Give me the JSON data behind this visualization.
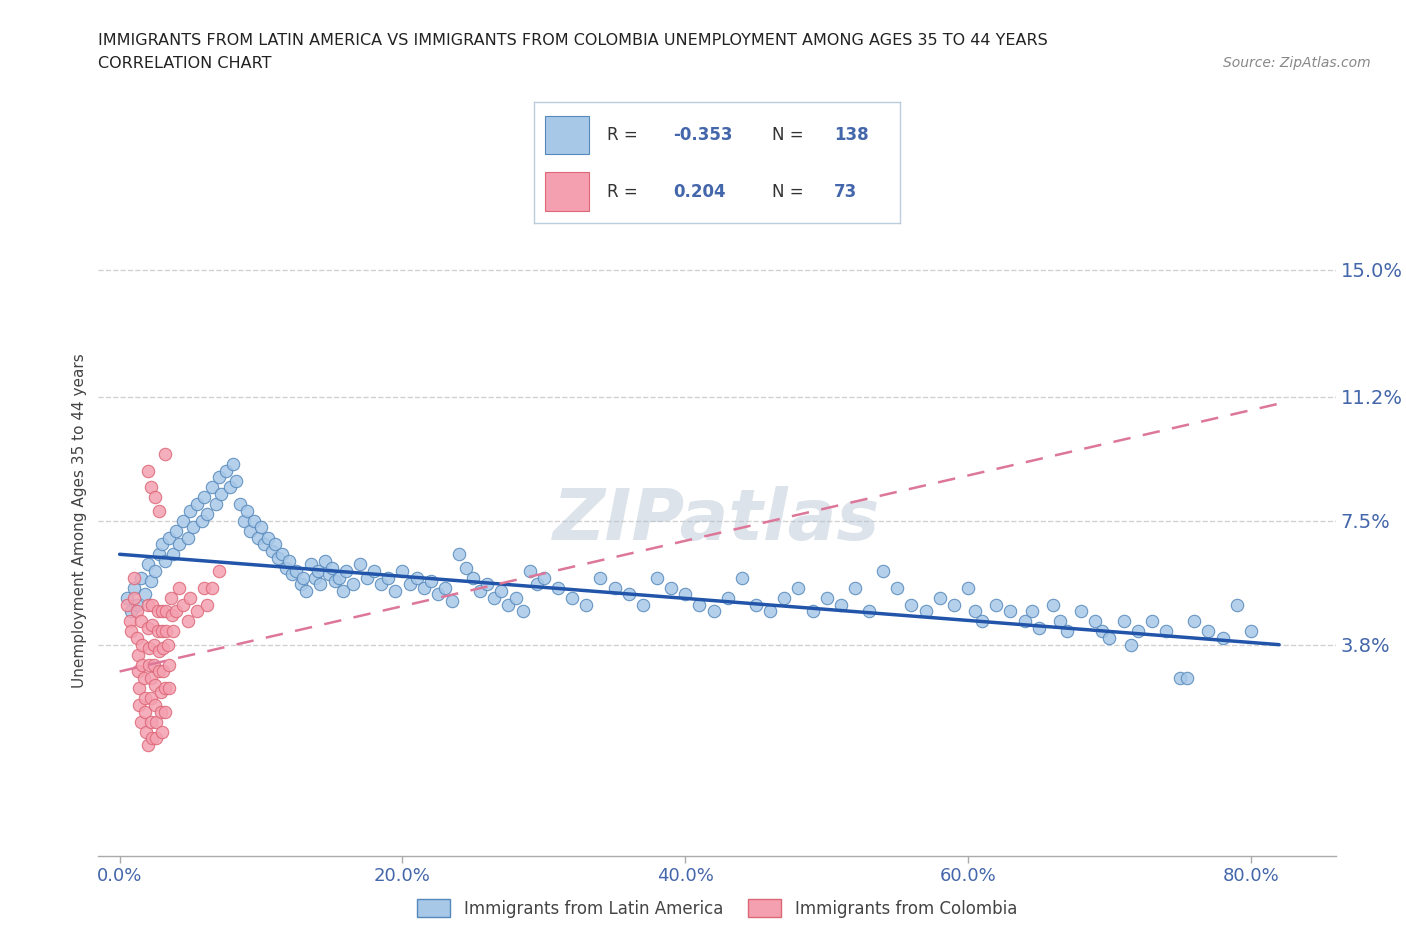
{
  "title_line1": "IMMIGRANTS FROM LATIN AMERICA VS IMMIGRANTS FROM COLOMBIA UNEMPLOYMENT AMONG AGES 35 TO 44 YEARS",
  "title_line2": "CORRELATION CHART",
  "source_text": "Source: ZipAtlas.com",
  "ylabel": "Unemployment Among Ages 35 to 44 years",
  "ytick_labels": [
    "15.0%",
    "11.2%",
    "7.5%",
    "3.8%"
  ],
  "ytick_values": [
    0.15,
    0.112,
    0.075,
    0.038
  ],
  "xtick_labels": [
    "0.0%",
    "20.0%",
    "40.0%",
    "60.0%",
    "80.0%"
  ],
  "xtick_values": [
    0.0,
    0.2,
    0.4,
    0.6,
    0.8
  ],
  "ylim": [
    -0.025,
    0.175
  ],
  "xlim": [
    -0.015,
    0.86
  ],
  "legend_labels": [
    "Immigrants from Latin America",
    "Immigrants from Colombia"
  ],
  "blue_color": "#A8C8E8",
  "pink_color": "#F4A0B0",
  "blue_edge": "#5588BB",
  "pink_edge": "#DD6677",
  "blue_trend_color": "#2255AA",
  "pink_trend_color": "#DD7799",
  "title_color": "#222222",
  "axis_label_color": "#444444",
  "tick_color": "#4466AA",
  "grid_color": "#CCCCCC",
  "watermark_color": "#AABBCC",
  "blue_scatter": [
    [
      0.005,
      0.052
    ],
    [
      0.008,
      0.048
    ],
    [
      0.01,
      0.055
    ],
    [
      0.012,
      0.05
    ],
    [
      0.015,
      0.058
    ],
    [
      0.018,
      0.053
    ],
    [
      0.02,
      0.062
    ],
    [
      0.022,
      0.057
    ],
    [
      0.025,
      0.06
    ],
    [
      0.028,
      0.065
    ],
    [
      0.03,
      0.068
    ],
    [
      0.032,
      0.063
    ],
    [
      0.035,
      0.07
    ],
    [
      0.038,
      0.065
    ],
    [
      0.04,
      0.072
    ],
    [
      0.042,
      0.068
    ],
    [
      0.045,
      0.075
    ],
    [
      0.048,
      0.07
    ],
    [
      0.05,
      0.078
    ],
    [
      0.052,
      0.073
    ],
    [
      0.055,
      0.08
    ],
    [
      0.058,
      0.075
    ],
    [
      0.06,
      0.082
    ],
    [
      0.062,
      0.077
    ],
    [
      0.065,
      0.085
    ],
    [
      0.068,
      0.08
    ],
    [
      0.07,
      0.088
    ],
    [
      0.072,
      0.083
    ],
    [
      0.075,
      0.09
    ],
    [
      0.078,
      0.085
    ],
    [
      0.08,
      0.092
    ],
    [
      0.082,
      0.087
    ],
    [
      0.085,
      0.08
    ],
    [
      0.088,
      0.075
    ],
    [
      0.09,
      0.078
    ],
    [
      0.092,
      0.072
    ],
    [
      0.095,
      0.075
    ],
    [
      0.098,
      0.07
    ],
    [
      0.1,
      0.073
    ],
    [
      0.102,
      0.068
    ],
    [
      0.105,
      0.07
    ],
    [
      0.108,
      0.066
    ],
    [
      0.11,
      0.068
    ],
    [
      0.112,
      0.064
    ],
    [
      0.115,
      0.065
    ],
    [
      0.118,
      0.061
    ],
    [
      0.12,
      0.063
    ],
    [
      0.122,
      0.059
    ],
    [
      0.125,
      0.06
    ],
    [
      0.128,
      0.056
    ],
    [
      0.13,
      0.058
    ],
    [
      0.132,
      0.054
    ],
    [
      0.135,
      0.062
    ],
    [
      0.138,
      0.058
    ],
    [
      0.14,
      0.06
    ],
    [
      0.142,
      0.056
    ],
    [
      0.145,
      0.063
    ],
    [
      0.148,
      0.059
    ],
    [
      0.15,
      0.061
    ],
    [
      0.152,
      0.057
    ],
    [
      0.155,
      0.058
    ],
    [
      0.158,
      0.054
    ],
    [
      0.16,
      0.06
    ],
    [
      0.165,
      0.056
    ],
    [
      0.17,
      0.062
    ],
    [
      0.175,
      0.058
    ],
    [
      0.18,
      0.06
    ],
    [
      0.185,
      0.056
    ],
    [
      0.19,
      0.058
    ],
    [
      0.195,
      0.054
    ],
    [
      0.2,
      0.06
    ],
    [
      0.205,
      0.056
    ],
    [
      0.21,
      0.058
    ],
    [
      0.215,
      0.055
    ],
    [
      0.22,
      0.057
    ],
    [
      0.225,
      0.053
    ],
    [
      0.23,
      0.055
    ],
    [
      0.235,
      0.051
    ],
    [
      0.24,
      0.065
    ],
    [
      0.245,
      0.061
    ],
    [
      0.25,
      0.058
    ],
    [
      0.255,
      0.054
    ],
    [
      0.26,
      0.056
    ],
    [
      0.265,
      0.052
    ],
    [
      0.27,
      0.054
    ],
    [
      0.275,
      0.05
    ],
    [
      0.28,
      0.052
    ],
    [
      0.285,
      0.048
    ],
    [
      0.29,
      0.06
    ],
    [
      0.295,
      0.056
    ],
    [
      0.3,
      0.058
    ],
    [
      0.31,
      0.055
    ],
    [
      0.32,
      0.052
    ],
    [
      0.33,
      0.05
    ],
    [
      0.34,
      0.058
    ],
    [
      0.35,
      0.055
    ],
    [
      0.36,
      0.053
    ],
    [
      0.37,
      0.05
    ],
    [
      0.38,
      0.058
    ],
    [
      0.39,
      0.055
    ],
    [
      0.4,
      0.053
    ],
    [
      0.41,
      0.05
    ],
    [
      0.42,
      0.048
    ],
    [
      0.43,
      0.052
    ],
    [
      0.44,
      0.058
    ],
    [
      0.45,
      0.05
    ],
    [
      0.46,
      0.048
    ],
    [
      0.47,
      0.052
    ],
    [
      0.48,
      0.055
    ],
    [
      0.49,
      0.048
    ],
    [
      0.5,
      0.052
    ],
    [
      0.51,
      0.05
    ],
    [
      0.52,
      0.055
    ],
    [
      0.53,
      0.048
    ],
    [
      0.54,
      0.06
    ],
    [
      0.55,
      0.055
    ],
    [
      0.56,
      0.05
    ],
    [
      0.57,
      0.048
    ],
    [
      0.58,
      0.052
    ],
    [
      0.59,
      0.05
    ],
    [
      0.6,
      0.055
    ],
    [
      0.605,
      0.048
    ],
    [
      0.61,
      0.045
    ],
    [
      0.62,
      0.05
    ],
    [
      0.63,
      0.048
    ],
    [
      0.64,
      0.045
    ],
    [
      0.645,
      0.048
    ],
    [
      0.65,
      0.043
    ],
    [
      0.66,
      0.05
    ],
    [
      0.665,
      0.045
    ],
    [
      0.67,
      0.042
    ],
    [
      0.68,
      0.048
    ],
    [
      0.69,
      0.045
    ],
    [
      0.695,
      0.042
    ],
    [
      0.7,
      0.04
    ],
    [
      0.71,
      0.045
    ],
    [
      0.715,
      0.038
    ],
    [
      0.72,
      0.042
    ],
    [
      0.73,
      0.045
    ],
    [
      0.74,
      0.042
    ],
    [
      0.75,
      0.028
    ],
    [
      0.755,
      0.028
    ],
    [
      0.76,
      0.045
    ],
    [
      0.77,
      0.042
    ],
    [
      0.78,
      0.04
    ],
    [
      0.79,
      0.05
    ],
    [
      0.8,
      0.042
    ]
  ],
  "pink_scatter": [
    [
      0.005,
      0.05
    ],
    [
      0.007,
      0.045
    ],
    [
      0.008,
      0.042
    ],
    [
      0.01,
      0.058
    ],
    [
      0.01,
      0.052
    ],
    [
      0.012,
      0.048
    ],
    [
      0.012,
      0.04
    ],
    [
      0.013,
      0.035
    ],
    [
      0.013,
      0.03
    ],
    [
      0.014,
      0.025
    ],
    [
      0.014,
      0.02
    ],
    [
      0.015,
      0.015
    ],
    [
      0.015,
      0.045
    ],
    [
      0.016,
      0.038
    ],
    [
      0.016,
      0.032
    ],
    [
      0.017,
      0.028
    ],
    [
      0.018,
      0.022
    ],
    [
      0.018,
      0.018
    ],
    [
      0.019,
      0.012
    ],
    [
      0.02,
      0.008
    ],
    [
      0.02,
      0.05
    ],
    [
      0.02,
      0.043
    ],
    [
      0.021,
      0.037
    ],
    [
      0.021,
      0.032
    ],
    [
      0.022,
      0.028
    ],
    [
      0.022,
      0.022
    ],
    [
      0.022,
      0.015
    ],
    [
      0.023,
      0.01
    ],
    [
      0.023,
      0.05
    ],
    [
      0.023,
      0.044
    ],
    [
      0.024,
      0.038
    ],
    [
      0.024,
      0.032
    ],
    [
      0.025,
      0.026
    ],
    [
      0.025,
      0.02
    ],
    [
      0.026,
      0.015
    ],
    [
      0.026,
      0.01
    ],
    [
      0.027,
      0.048
    ],
    [
      0.027,
      0.042
    ],
    [
      0.028,
      0.036
    ],
    [
      0.028,
      0.03
    ],
    [
      0.029,
      0.024
    ],
    [
      0.029,
      0.018
    ],
    [
      0.03,
      0.012
    ],
    [
      0.03,
      0.048
    ],
    [
      0.03,
      0.042
    ],
    [
      0.031,
      0.037
    ],
    [
      0.031,
      0.03
    ],
    [
      0.032,
      0.025
    ],
    [
      0.032,
      0.018
    ],
    [
      0.033,
      0.048
    ],
    [
      0.033,
      0.042
    ],
    [
      0.034,
      0.038
    ],
    [
      0.035,
      0.032
    ],
    [
      0.035,
      0.025
    ],
    [
      0.036,
      0.052
    ],
    [
      0.037,
      0.047
    ],
    [
      0.038,
      0.042
    ],
    [
      0.04,
      0.048
    ],
    [
      0.042,
      0.055
    ],
    [
      0.045,
      0.05
    ],
    [
      0.048,
      0.045
    ],
    [
      0.05,
      0.052
    ],
    [
      0.055,
      0.048
    ],
    [
      0.06,
      0.055
    ],
    [
      0.062,
      0.05
    ],
    [
      0.065,
      0.055
    ],
    [
      0.07,
      0.06
    ],
    [
      0.02,
      0.09
    ],
    [
      0.022,
      0.085
    ],
    [
      0.025,
      0.082
    ],
    [
      0.028,
      0.078
    ],
    [
      0.032,
      0.095
    ]
  ],
  "blue_trend": {
    "x_start": 0.0,
    "x_end": 0.82,
    "y_start": 0.065,
    "y_end": 0.038
  },
  "pink_trend": {
    "x_start": 0.0,
    "x_end": 0.82,
    "y_start": 0.03,
    "y_end": 0.11
  }
}
